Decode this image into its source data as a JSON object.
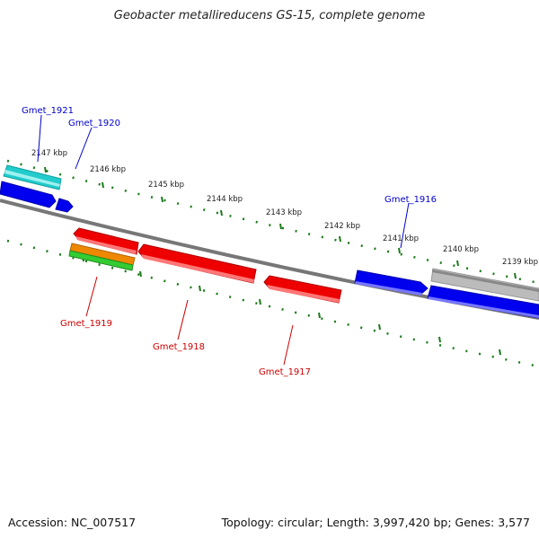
{
  "title": "Geobacter metallireducens GS-15, complete genome",
  "footer": {
    "accession": "Accession: NC_007517",
    "summary": "Topology: circular; Length: 3,997,420 bp; Genes: 3,577"
  },
  "ticks": [
    "2147 kbp",
    "2146 kbp",
    "2145 kbp",
    "2144 kbp",
    "2143 kbp",
    "2142 kbp",
    "2141 kbp",
    "2140 kbp",
    "2139 kbp"
  ],
  "genes": {
    "gmet_1921": "Gmet_1921",
    "gmet_1920": "Gmet_1920",
    "gmet_1916": "Gmet_1916",
    "gmet_1919": "Gmet_1919",
    "gmet_1918": "Gmet_1918",
    "gmet_1917": "Gmet_1917"
  },
  "colors": {
    "forward_label": "#0000cc",
    "reverse_label": "#cc0000",
    "tick": "#1a7a1a",
    "backbone": "#777777",
    "gene_blue": "#0000ee",
    "gene_red": "#ee0000",
    "gene_cyan": "#22cccc",
    "gene_orange": "#ee8800",
    "gene_green": "#33cc33",
    "gene_gray": "#bbbbbb"
  }
}
